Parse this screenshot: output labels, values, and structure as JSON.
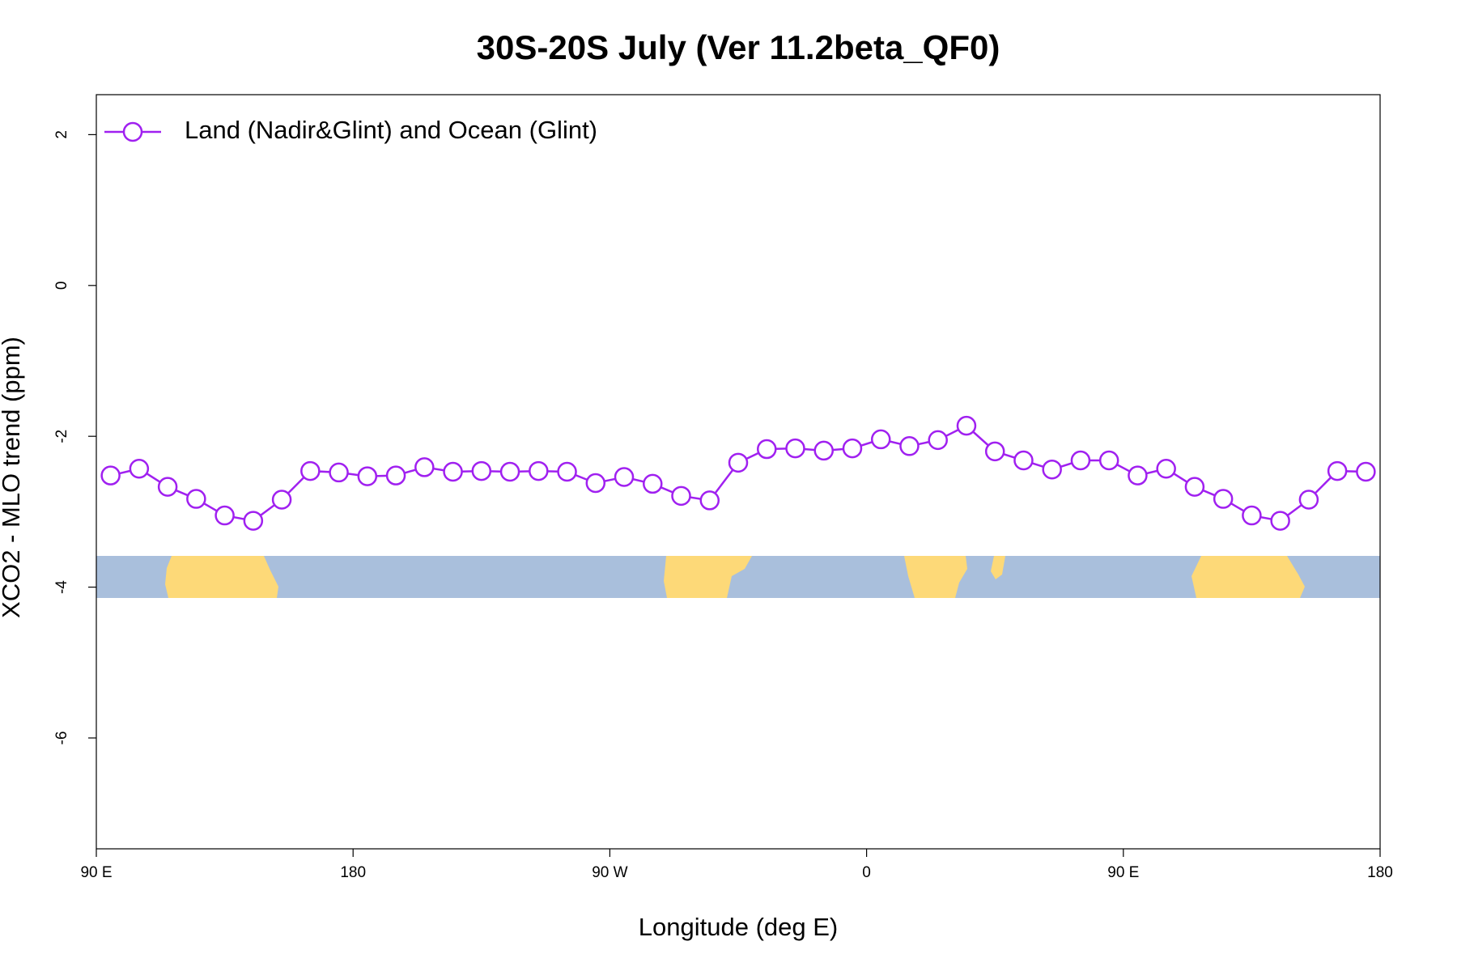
{
  "chart_data": {
    "type": "line",
    "title": "30S-20S July (Ver 11.2beta_QF0)",
    "xlabel": "Longitude (deg E)",
    "ylabel": "XCO2 - MLO trend (ppm)",
    "x": [
      95,
      105,
      115,
      125,
      135,
      145,
      155,
      165,
      175,
      185,
      195,
      205,
      215,
      225,
      235,
      245,
      255,
      265,
      275,
      285,
      295,
      305,
      315,
      325,
      335,
      345,
      355,
      365,
      375,
      385,
      395,
      405,
      415,
      425,
      435,
      445,
      455,
      465,
      475,
      485,
      495,
      505,
      515,
      525,
      535
    ],
    "series": [
      {
        "name": "Land (Nadir&Glint) and Ocean (Glint)",
        "color": "#a020f0",
        "values": [
          -2.52,
          -2.43,
          -2.67,
          -2.83,
          -3.05,
          -3.12,
          -2.84,
          -2.46,
          -2.48,
          -2.53,
          -2.52,
          -2.41,
          -2.47,
          -2.46,
          -2.47,
          -2.46,
          -2.47,
          -2.62,
          -2.54,
          -2.63,
          -2.79,
          -2.85,
          -2.35,
          -2.17,
          -2.16,
          -2.19,
          -2.16,
          -2.04,
          -2.13,
          -2.05,
          -1.86,
          -2.2,
          -2.32,
          -2.44,
          -2.32,
          -2.32,
          -2.52,
          -2.43,
          -2.67,
          -2.83,
          -3.05,
          -3.12,
          -2.84,
          -2.46,
          -2.47
        ]
      }
    ],
    "xlim": [
      90,
      540
    ],
    "ylim": [
      -7.47,
      2.53
    ],
    "xticks": [
      {
        "value": 90,
        "label": "90 E"
      },
      180,
      {
        "value": 270,
        "label": "90 W"
      },
      {
        "value": 360,
        "label": "0"
      },
      {
        "value": 450,
        "label": "90 E"
      },
      {
        "value": 540,
        "label": "180"
      }
    ],
    "yticks": [
      -6,
      -4,
      -2,
      0,
      2
    ],
    "legend": "top-left"
  }
}
